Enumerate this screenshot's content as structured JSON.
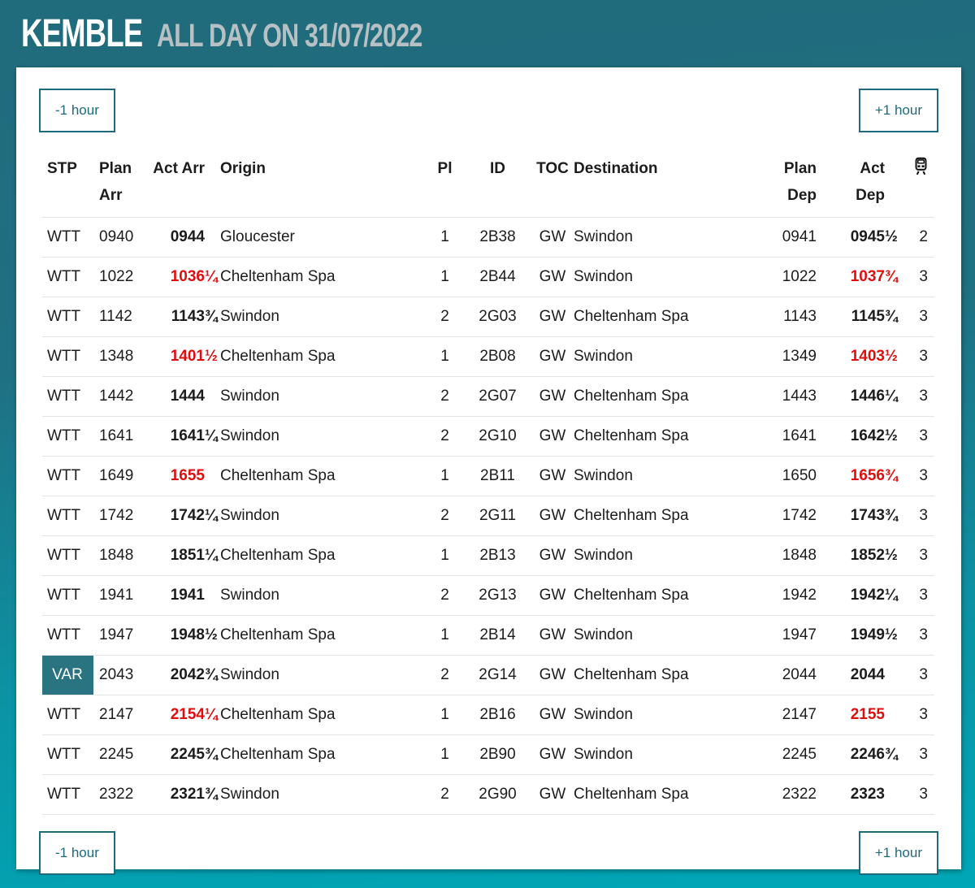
{
  "header": {
    "station": "KEMBLE",
    "subtitle": "ALL DAY ON 31/07/2022"
  },
  "controls": {
    "prev_label": "-1 hour",
    "next_label": "+1 hour"
  },
  "table": {
    "headers": {
      "stp": "STP",
      "plan_arr": [
        "Plan",
        "Arr"
      ],
      "act_arr": "Act Arr",
      "origin": "Origin",
      "platform": "Pl",
      "id": "ID",
      "toc": "TOC",
      "destination": "Destination",
      "plan_dep": [
        "Plan",
        "Dep"
      ],
      "act_dep": [
        "Act",
        "Dep"
      ],
      "coaches_icon": "train-icon"
    },
    "rows": [
      {
        "stp": "WTT",
        "stp_badge": false,
        "plan_arr": "0940",
        "act_arr": "0944",
        "act_arr_frac": "",
        "act_arr_red": false,
        "origin": "Gloucester",
        "platform": "1",
        "id": "2B38",
        "toc": "GW",
        "destination": "Swindon",
        "plan_dep": "0941",
        "act_dep": "0945",
        "act_dep_frac": "½",
        "act_dep_red": false,
        "coaches": "2"
      },
      {
        "stp": "WTT",
        "stp_badge": false,
        "plan_arr": "1022",
        "act_arr": "1036",
        "act_arr_frac": "¼",
        "act_arr_red": true,
        "origin": "Cheltenham Spa",
        "platform": "1",
        "id": "2B44",
        "toc": "GW",
        "destination": "Swindon",
        "plan_dep": "1022",
        "act_dep": "1037",
        "act_dep_frac": "¾",
        "act_dep_red": true,
        "coaches": "3"
      },
      {
        "stp": "WTT",
        "stp_badge": false,
        "plan_arr": "1142",
        "act_arr": "1143",
        "act_arr_frac": "¾",
        "act_arr_red": false,
        "origin": "Swindon",
        "platform": "2",
        "id": "2G03",
        "toc": "GW",
        "destination": "Cheltenham Spa",
        "plan_dep": "1143",
        "act_dep": "1145",
        "act_dep_frac": "¾",
        "act_dep_red": false,
        "coaches": "3"
      },
      {
        "stp": "WTT",
        "stp_badge": false,
        "plan_arr": "1348",
        "act_arr": "1401",
        "act_arr_frac": "½",
        "act_arr_red": true,
        "origin": "Cheltenham Spa",
        "platform": "1",
        "id": "2B08",
        "toc": "GW",
        "destination": "Swindon",
        "plan_dep": "1349",
        "act_dep": "1403",
        "act_dep_frac": "½",
        "act_dep_red": true,
        "coaches": "3"
      },
      {
        "stp": "WTT",
        "stp_badge": false,
        "plan_arr": "1442",
        "act_arr": "1444",
        "act_arr_frac": "",
        "act_arr_red": false,
        "origin": "Swindon",
        "platform": "2",
        "id": "2G07",
        "toc": "GW",
        "destination": "Cheltenham Spa",
        "plan_dep": "1443",
        "act_dep": "1446",
        "act_dep_frac": "¼",
        "act_dep_red": false,
        "coaches": "3"
      },
      {
        "stp": "WTT",
        "stp_badge": false,
        "plan_arr": "1641",
        "act_arr": "1641",
        "act_arr_frac": "¼",
        "act_arr_red": false,
        "origin": "Swindon",
        "platform": "2",
        "id": "2G10",
        "toc": "GW",
        "destination": "Cheltenham Spa",
        "plan_dep": "1641",
        "act_dep": "1642",
        "act_dep_frac": "½",
        "act_dep_red": false,
        "coaches": "3"
      },
      {
        "stp": "WTT",
        "stp_badge": false,
        "plan_arr": "1649",
        "act_arr": "1655",
        "act_arr_frac": "",
        "act_arr_red": true,
        "origin": "Cheltenham Spa",
        "platform": "1",
        "id": "2B11",
        "toc": "GW",
        "destination": "Swindon",
        "plan_dep": "1650",
        "act_dep": "1656",
        "act_dep_frac": "¾",
        "act_dep_red": true,
        "coaches": "3"
      },
      {
        "stp": "WTT",
        "stp_badge": false,
        "plan_arr": "1742",
        "act_arr": "1742",
        "act_arr_frac": "¼",
        "act_arr_red": false,
        "origin": "Swindon",
        "platform": "2",
        "id": "2G11",
        "toc": "GW",
        "destination": "Cheltenham Spa",
        "plan_dep": "1742",
        "act_dep": "1743",
        "act_dep_frac": "¾",
        "act_dep_red": false,
        "coaches": "3"
      },
      {
        "stp": "WTT",
        "stp_badge": false,
        "plan_arr": "1848",
        "act_arr": "1851",
        "act_arr_frac": "¼",
        "act_arr_red": false,
        "origin": "Cheltenham Spa",
        "platform": "1",
        "id": "2B13",
        "toc": "GW",
        "destination": "Swindon",
        "plan_dep": "1848",
        "act_dep": "1852",
        "act_dep_frac": "½",
        "act_dep_red": false,
        "coaches": "3"
      },
      {
        "stp": "WTT",
        "stp_badge": false,
        "plan_arr": "1941",
        "act_arr": "1941",
        "act_arr_frac": "",
        "act_arr_red": false,
        "origin": "Swindon",
        "platform": "2",
        "id": "2G13",
        "toc": "GW",
        "destination": "Cheltenham Spa",
        "plan_dep": "1942",
        "act_dep": "1942",
        "act_dep_frac": "¼",
        "act_dep_red": false,
        "coaches": "3"
      },
      {
        "stp": "WTT",
        "stp_badge": false,
        "plan_arr": "1947",
        "act_arr": "1948",
        "act_arr_frac": "½",
        "act_arr_red": false,
        "origin": "Cheltenham Spa",
        "platform": "1",
        "id": "2B14",
        "toc": "GW",
        "destination": "Swindon",
        "plan_dep": "1947",
        "act_dep": "1949",
        "act_dep_frac": "½",
        "act_dep_red": false,
        "coaches": "3"
      },
      {
        "stp": "VAR",
        "stp_badge": true,
        "plan_arr": "2043",
        "act_arr": "2042",
        "act_arr_frac": "¾",
        "act_arr_red": false,
        "origin": "Swindon",
        "platform": "2",
        "id": "2G14",
        "toc": "GW",
        "destination": "Cheltenham Spa",
        "plan_dep": "2044",
        "act_dep": "2044",
        "act_dep_frac": "",
        "act_dep_red": false,
        "coaches": "3"
      },
      {
        "stp": "WTT",
        "stp_badge": false,
        "plan_arr": "2147",
        "act_arr": "2154",
        "act_arr_frac": "¼",
        "act_arr_red": true,
        "origin": "Cheltenham Spa",
        "platform": "1",
        "id": "2B16",
        "toc": "GW",
        "destination": "Swindon",
        "plan_dep": "2147",
        "act_dep": "2155",
        "act_dep_frac": "",
        "act_dep_red": true,
        "coaches": "3"
      },
      {
        "stp": "WTT",
        "stp_badge": false,
        "plan_arr": "2245",
        "act_arr": "2245",
        "act_arr_frac": "¾",
        "act_arr_red": false,
        "origin": "Cheltenham Spa",
        "platform": "1",
        "id": "2B90",
        "toc": "GW",
        "destination": "Swindon",
        "plan_dep": "2245",
        "act_dep": "2246",
        "act_dep_frac": "¾",
        "act_dep_red": false,
        "coaches": "3"
      },
      {
        "stp": "WTT",
        "stp_badge": false,
        "plan_arr": "2322",
        "act_arr": "2321",
        "act_arr_frac": "¾",
        "act_arr_red": false,
        "origin": "Swindon",
        "platform": "2",
        "id": "2G90",
        "toc": "GW",
        "destination": "Cheltenham Spa",
        "plan_dep": "2322",
        "act_dep": "2323",
        "act_dep_frac": "",
        "act_dep_red": false,
        "coaches": "3"
      }
    ]
  },
  "colors": {
    "background_top": "#206b7c",
    "background_bottom": "#00a7b7",
    "accent_teal": "#1d6a7c",
    "late_red": "#e00d0d",
    "var_badge_bg": "#2a7380",
    "card_bg": "#ffffff",
    "text": "#1c1c1c",
    "subtitle_gray": "#b7c1c4"
  }
}
